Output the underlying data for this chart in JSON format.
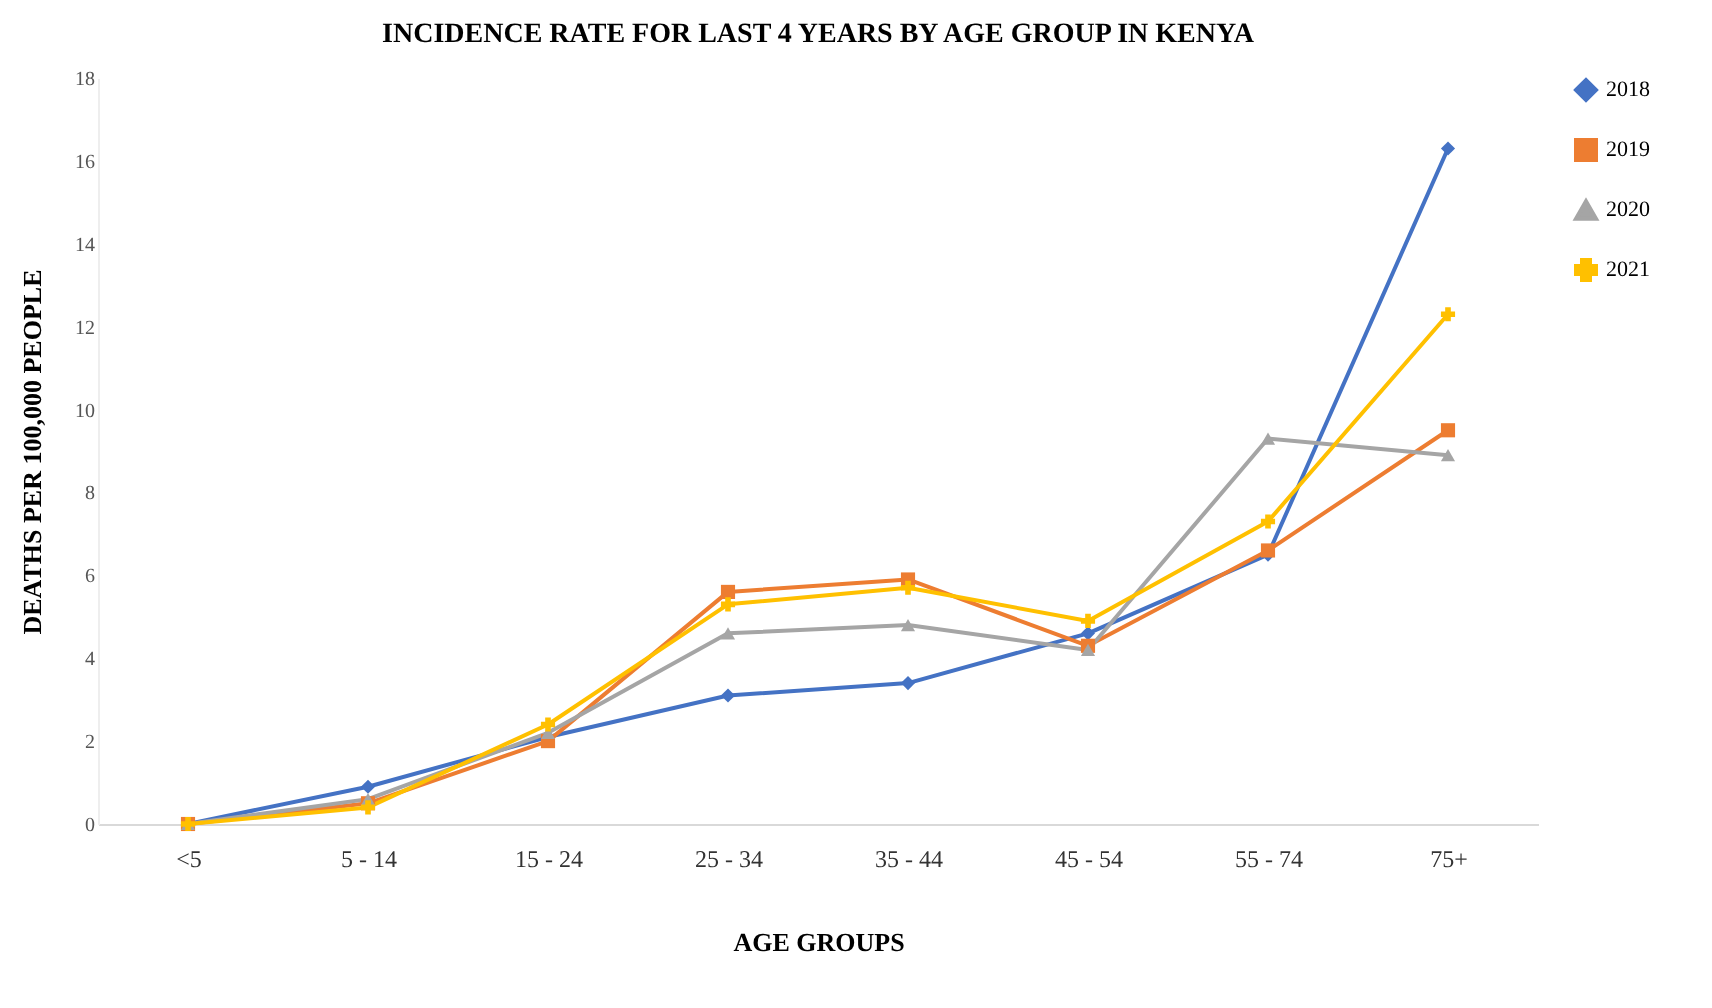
{
  "chart_data": {
    "type": "line",
    "title": "INCIDENCE RATE FOR LAST 4 YEARS BY AGE GROUP IN KENYA",
    "xlabel": "AGE GROUPS",
    "ylabel": "DEATHS PER 100,000 PEOPLE",
    "categories": [
      "<5",
      "5 - 14",
      "15 - 24",
      "25 - 34",
      "35 - 44",
      "45 - 54",
      "55 - 74",
      "75+"
    ],
    "series": [
      {
        "name": "2018",
        "color": "#4472c4",
        "marker": "diamond",
        "values": [
          0,
          0.9,
          2.1,
          3.1,
          3.4,
          4.6,
          6.5,
          16.3
        ]
      },
      {
        "name": "2019",
        "color": "#ed7d31",
        "marker": "square",
        "values": [
          0,
          0.5,
          2.0,
          5.6,
          5.9,
          4.3,
          6.6,
          9.5
        ]
      },
      {
        "name": "2020",
        "color": "#a5a5a5",
        "marker": "triangle",
        "values": [
          0,
          0.6,
          2.2,
          4.6,
          4.8,
          4.2,
          9.3,
          8.9
        ]
      },
      {
        "name": "2021",
        "color": "#ffc000",
        "marker": "cross",
        "values": [
          0,
          0.4,
          2.4,
          5.3,
          5.7,
          4.9,
          7.3,
          12.3
        ]
      }
    ],
    "ylim": [
      0,
      18
    ],
    "yticks": [
      0,
      2,
      4,
      6,
      8,
      10,
      12,
      14,
      16,
      18
    ],
    "grid": false,
    "legend": "right"
  }
}
